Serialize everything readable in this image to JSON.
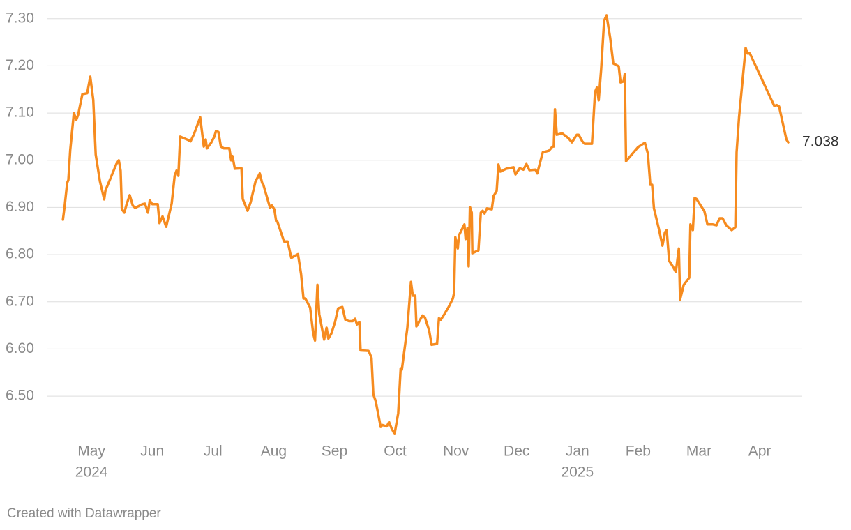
{
  "chart_data": {
    "type": "line",
    "footer": "Created with Datawrapper",
    "color": "#f68b1f",
    "grid": true,
    "xlim": [
      0.53,
      12.47
    ],
    "ylim": [
      6.41,
      7.31
    ],
    "xticks": [
      {
        "value": 1,
        "label": "May"
      },
      {
        "value": 2,
        "label": "Jun"
      },
      {
        "value": 3,
        "label": "Jul"
      },
      {
        "value": 4,
        "label": "Aug"
      },
      {
        "value": 5,
        "label": "Sep"
      },
      {
        "value": 6,
        "label": "Oct"
      },
      {
        "value": 7,
        "label": "Nov"
      },
      {
        "value": 8,
        "label": "Dec"
      },
      {
        "value": 9,
        "label": "Jan"
      },
      {
        "value": 10,
        "label": "Feb"
      },
      {
        "value": 11,
        "label": "Mar"
      },
      {
        "value": 12,
        "label": "Apr"
      }
    ],
    "year_labels": [
      {
        "value": 1,
        "label": "2024"
      },
      {
        "value": 9,
        "label": "2025"
      }
    ],
    "yticks": [
      {
        "value": 6.5,
        "label": "6.50"
      },
      {
        "value": 6.6,
        "label": "6.60"
      },
      {
        "value": 6.7,
        "label": "6.70"
      },
      {
        "value": 6.8,
        "label": "6.80"
      },
      {
        "value": 6.9,
        "label": "6.90"
      },
      {
        "value": 7.0,
        "label": "7.00"
      },
      {
        "value": 7.1,
        "label": "7.10"
      },
      {
        "value": 7.2,
        "label": "7.20"
      },
      {
        "value": 7.3,
        "label": "7.30"
      }
    ],
    "x": [
      0.53,
      0.56,
      0.6,
      0.62,
      0.65,
      0.71,
      0.75,
      0.78,
      0.85,
      0.93,
      0.98,
      1.03,
      1.07,
      1.14,
      1.21,
      1.23,
      1.33,
      1.41,
      1.45,
      1.48,
      1.5,
      1.54,
      1.58,
      1.63,
      1.68,
      1.72,
      1.84,
      1.88,
      1.93,
      1.96,
      2.0,
      2.09,
      2.12,
      2.17,
      2.23,
      2.32,
      2.37,
      2.4,
      2.43,
      2.46,
      2.59,
      2.63,
      2.69,
      2.79,
      2.85,
      2.88,
      2.9,
      2.97,
      3.02,
      3.05,
      3.09,
      3.13,
      3.18,
      3.27,
      3.3,
      3.32,
      3.36,
      3.47,
      3.49,
      3.57,
      3.62,
      3.7,
      3.77,
      3.81,
      3.83,
      3.94,
      3.97,
      4.01,
      4.04,
      4.06,
      4.17,
      4.23,
      4.29,
      4.33,
      4.4,
      4.45,
      4.49,
      4.52,
      4.6,
      4.65,
      4.68,
      4.72,
      4.75,
      4.83,
      4.87,
      4.9,
      4.95,
      5.01,
      5.06,
      5.13,
      5.18,
      5.24,
      5.3,
      5.34,
      5.37,
      5.41,
      5.43,
      5.56,
      5.58,
      5.61,
      5.64,
      5.68,
      5.76,
      5.79,
      5.86,
      5.9,
      5.94,
      5.99,
      6.05,
      6.09,
      6.11,
      6.2,
      6.26,
      6.29,
      6.33,
      6.35,
      6.45,
      6.49,
      6.56,
      6.6,
      6.69,
      6.72,
      6.75,
      6.81,
      6.88,
      6.95,
      6.97,
      6.99,
      7.03,
      7.05,
      7.14,
      7.16,
      7.19,
      7.21,
      7.23,
      7.26,
      7.27,
      7.37,
      7.41,
      7.44,
      7.47,
      7.51,
      7.59,
      7.62,
      7.67,
      7.7,
      7.73,
      7.83,
      7.95,
      7.98,
      8.05,
      8.11,
      8.16,
      8.21,
      8.31,
      8.34,
      8.36,
      8.43,
      8.53,
      8.59,
      8.61,
      8.63,
      8.66,
      8.75,
      8.85,
      8.91,
      8.99,
      9.02,
      9.08,
      9.12,
      9.24,
      9.29,
      9.32,
      9.35,
      9.39,
      9.44,
      9.48,
      9.54,
      9.59,
      9.68,
      9.71,
      9.76,
      9.78,
      9.8,
      10.0,
      10.11,
      10.16,
      10.2,
      10.23,
      10.26,
      10.34,
      10.4,
      10.44,
      10.47,
      10.51,
      10.57,
      10.62,
      10.67,
      10.69,
      10.75,
      10.84,
      10.86,
      10.9,
      10.93,
      10.96,
      11.09,
      11.14,
      11.23,
      11.29,
      11.34,
      11.39,
      11.45,
      11.54,
      11.6,
      11.62,
      11.66,
      11.77,
      11.8,
      11.84,
      12.24,
      12.28,
      12.32,
      12.44,
      12.47
    ],
    "values": [
      6.874,
      6.904,
      6.952,
      6.958,
      7.022,
      7.1,
      7.086,
      7.096,
      7.14,
      7.142,
      7.177,
      7.128,
      7.012,
      6.955,
      6.917,
      6.936,
      6.967,
      6.992,
      7.0,
      6.978,
      6.896,
      6.889,
      6.907,
      6.926,
      6.904,
      6.899,
      6.907,
      6.908,
      6.889,
      6.915,
      6.907,
      6.907,
      6.867,
      6.881,
      6.859,
      6.908,
      6.967,
      6.978,
      6.967,
      7.05,
      7.043,
      7.04,
      7.056,
      7.091,
      7.029,
      7.044,
      7.025,
      7.037,
      7.049,
      7.062,
      7.06,
      7.029,
      7.025,
      7.025,
      7.0,
      7.009,
      6.982,
      6.983,
      6.918,
      6.893,
      6.911,
      6.955,
      6.972,
      6.952,
      6.948,
      6.899,
      6.904,
      6.896,
      6.871,
      6.87,
      6.828,
      6.828,
      6.793,
      6.796,
      6.801,
      6.759,
      6.707,
      6.707,
      6.688,
      6.633,
      6.618,
      6.736,
      6.674,
      6.62,
      6.645,
      6.622,
      6.633,
      6.657,
      6.686,
      6.689,
      6.662,
      6.659,
      6.659,
      6.664,
      6.652,
      6.657,
      6.597,
      6.596,
      6.591,
      6.581,
      6.504,
      6.489,
      6.435,
      6.439,
      6.436,
      6.445,
      6.432,
      6.42,
      6.464,
      6.559,
      6.556,
      6.645,
      6.742,
      6.713,
      6.713,
      6.648,
      6.671,
      6.667,
      6.639,
      6.609,
      6.611,
      6.665,
      6.662,
      6.674,
      6.689,
      6.707,
      6.719,
      6.837,
      6.813,
      6.841,
      6.864,
      6.833,
      6.856,
      6.775,
      6.901,
      6.889,
      6.803,
      6.809,
      6.889,
      6.893,
      6.887,
      6.898,
      6.896,
      6.924,
      6.935,
      6.991,
      6.976,
      6.982,
      6.985,
      6.97,
      6.983,
      6.98,
      6.992,
      6.979,
      6.98,
      6.972,
      6.983,
      7.017,
      7.02,
      7.029,
      7.029,
      7.108,
      7.054,
      7.057,
      7.047,
      7.038,
      7.054,
      7.054,
      7.04,
      7.035,
      7.035,
      7.145,
      7.154,
      7.127,
      7.192,
      7.296,
      7.307,
      7.259,
      7.205,
      7.199,
      7.165,
      7.167,
      7.183,
      6.998,
      7.028,
      7.037,
      7.014,
      6.948,
      6.948,
      6.898,
      6.855,
      6.819,
      6.847,
      6.852,
      6.787,
      6.775,
      6.763,
      6.813,
      6.705,
      6.736,
      6.751,
      6.864,
      6.852,
      6.92,
      6.918,
      6.892,
      6.864,
      6.864,
      6.862,
      6.877,
      6.877,
      6.862,
      6.852,
      6.858,
      7.017,
      7.091,
      7.238,
      7.226,
      7.226,
      7.115,
      7.117,
      7.114,
      7.044,
      7.038
    ]
  }
}
